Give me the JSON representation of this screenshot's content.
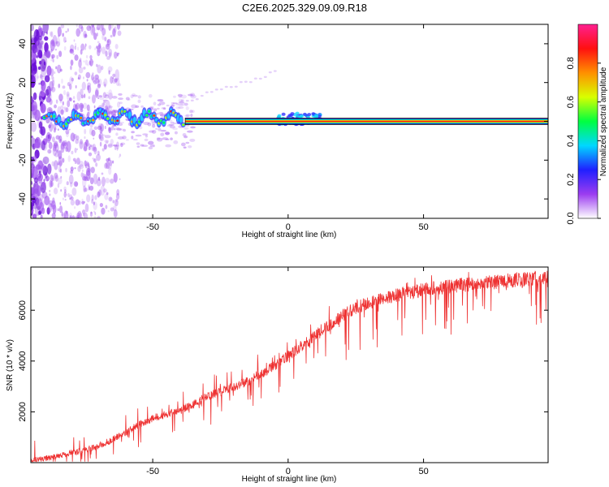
{
  "title": "C2E6.2025.329.09.09.R18",
  "chart_data": [
    {
      "type": "heatmap",
      "xlabel": "Height of straight line (km)",
      "ylabel": "Frequency (Hz)",
      "xlim": [
        -95,
        96
      ],
      "ylim": [
        -50,
        50
      ],
      "x_ticks": [
        -50,
        0,
        50
      ],
      "y_ticks": [
        -40,
        -20,
        0,
        20,
        40
      ],
      "colorbar": {
        "label": "Normalized spectral amplitude",
        "range": [
          0,
          1
        ],
        "ticks": [
          0.0,
          0.2,
          0.4,
          0.6,
          0.8
        ],
        "tick_labels": [
          "0.0",
          "0.2",
          "0.4",
          "0.6",
          "0.8"
        ],
        "colors": [
          "#ffffff",
          "#9b3cf0",
          "#2020ff",
          "#00d8ff",
          "#00ff40",
          "#d8ff00",
          "#ff9000",
          "#ff1010",
          "#ff2090"
        ]
      },
      "ridge_frequency": 0,
      "ridge_start_height": -38,
      "noise_region_heights": [
        -95,
        -70
      ],
      "grid": false,
      "legend": "none"
    },
    {
      "type": "line",
      "xlabel": "Height of straight line (km)",
      "ylabel": "SNR (10 * v/v)",
      "xlim": [
        -95,
        96
      ],
      "ylim": [
        0,
        7700
      ],
      "x_ticks": [
        -50,
        0,
        50
      ],
      "y_ticks": [
        2000,
        4000,
        6000
      ],
      "color": "#ee3333",
      "series": [
        {
          "x": [
            -95,
            -90,
            -85,
            -80,
            -75,
            -70,
            -65,
            -60,
            -55,
            -50,
            -45,
            -40,
            -35,
            -30,
            -25,
            -20,
            -15,
            -10,
            -5,
            0,
            5,
            10,
            15,
            20,
            25,
            30,
            35,
            40,
            45,
            50,
            55,
            60,
            65,
            70,
            75,
            80,
            85,
            90,
            96
          ],
          "y": [
            100,
            150,
            250,
            400,
            500,
            650,
            900,
            1200,
            1500,
            1750,
            1900,
            2050,
            2300,
            2600,
            2800,
            3000,
            3200,
            3500,
            3800,
            4200,
            4600,
            5000,
            5400,
            5800,
            6100,
            6300,
            6450,
            6600,
            6700,
            6800,
            6900,
            6950,
            7000,
            7050,
            7100,
            7150,
            7200,
            7250,
            7300
          ]
        }
      ],
      "grid": false,
      "legend": "none"
    }
  ]
}
